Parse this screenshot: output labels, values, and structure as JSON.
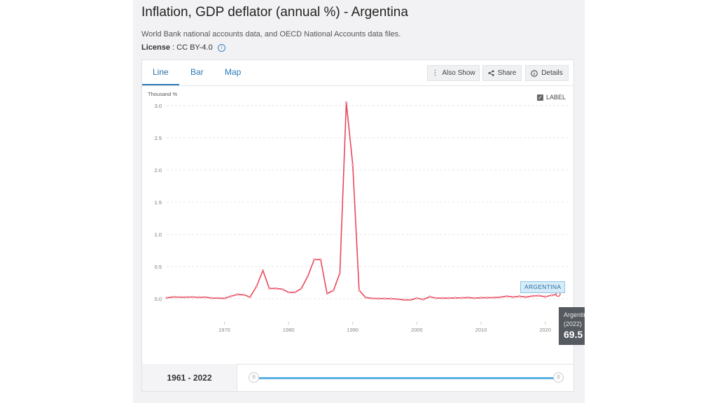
{
  "header": {
    "title": "Inflation, GDP deflator (annual %) - Argentina",
    "source": "World Bank national accounts data, and OECD National Accounts data files.",
    "license_label": "License",
    "license_value": ": CC BY-4.0"
  },
  "tabs": [
    {
      "label": "Line",
      "active": true
    },
    {
      "label": "Bar",
      "active": false
    },
    {
      "label": "Map",
      "active": false
    }
  ],
  "toolbar": {
    "also_show": "Also Show",
    "share": "Share",
    "details": "Details"
  },
  "label_toggle": {
    "label": "LABEL",
    "checked": true
  },
  "tooltip": {
    "country": "Argentina",
    "year": "(2022)",
    "value": "69.5"
  },
  "series_tag": "ARGENTINA",
  "range": {
    "text": "1961 - 2022",
    "start": 1961,
    "end": 2022
  },
  "colors": {
    "line": "#e8485c",
    "accent": "#2b7ab8",
    "track": "#58b0e3"
  },
  "chart_data": {
    "type": "line",
    "ylabel": "Thousand %",
    "ylim": [
      0,
      3.0
    ],
    "y_ticks": [
      0.0,
      0.5,
      1.0,
      1.5,
      2.0,
      2.5,
      3.0
    ],
    "y_tick_labels": [
      "0.0",
      "0.5",
      "1.0",
      "1.5",
      "2.0",
      "2.5",
      "3.0"
    ],
    "x_ticks": [
      1970,
      1980,
      1990,
      2000,
      2010,
      2020
    ],
    "x_tick_labels": [
      "1970",
      "1980",
      "1990",
      "2000",
      "2010",
      "2020"
    ],
    "xlim": [
      1961,
      2022
    ],
    "grid": true,
    "series": [
      {
        "name": "Argentina",
        "x": [
          1961,
          1962,
          1963,
          1964,
          1965,
          1966,
          1967,
          1968,
          1969,
          1970,
          1971,
          1972,
          1973,
          1974,
          1975,
          1976,
          1977,
          1978,
          1979,
          1980,
          1981,
          1982,
          1983,
          1984,
          1985,
          1986,
          1987,
          1988,
          1989,
          1990,
          1991,
          1992,
          1993,
          1994,
          1995,
          1996,
          1997,
          1998,
          1999,
          2000,
          2001,
          2002,
          2003,
          2004,
          2005,
          2006,
          2007,
          2008,
          2009,
          2010,
          2011,
          2012,
          2013,
          2014,
          2015,
          2016,
          2017,
          2018,
          2019,
          2020,
          2021,
          2022
        ],
        "values": [
          0.013,
          0.028,
          0.024,
          0.024,
          0.027,
          0.022,
          0.025,
          0.011,
          0.009,
          0.006,
          0.038,
          0.066,
          0.062,
          0.026,
          0.19,
          0.44,
          0.16,
          0.16,
          0.15,
          0.1,
          0.1,
          0.16,
          0.35,
          0.61,
          0.61,
          0.08,
          0.13,
          0.4,
          3.05,
          2.08,
          0.13,
          0.02,
          0.006,
          0.003,
          0.003,
          0.001,
          -0.005,
          -0.018,
          -0.018,
          0.01,
          -0.011,
          0.031,
          0.01,
          0.009,
          0.009,
          0.013,
          0.014,
          0.019,
          0.01,
          0.015,
          0.016,
          0.018,
          0.024,
          0.04,
          0.026,
          0.037,
          0.026,
          0.042,
          0.048,
          0.031,
          0.054,
          0.0695
        ]
      }
    ]
  }
}
